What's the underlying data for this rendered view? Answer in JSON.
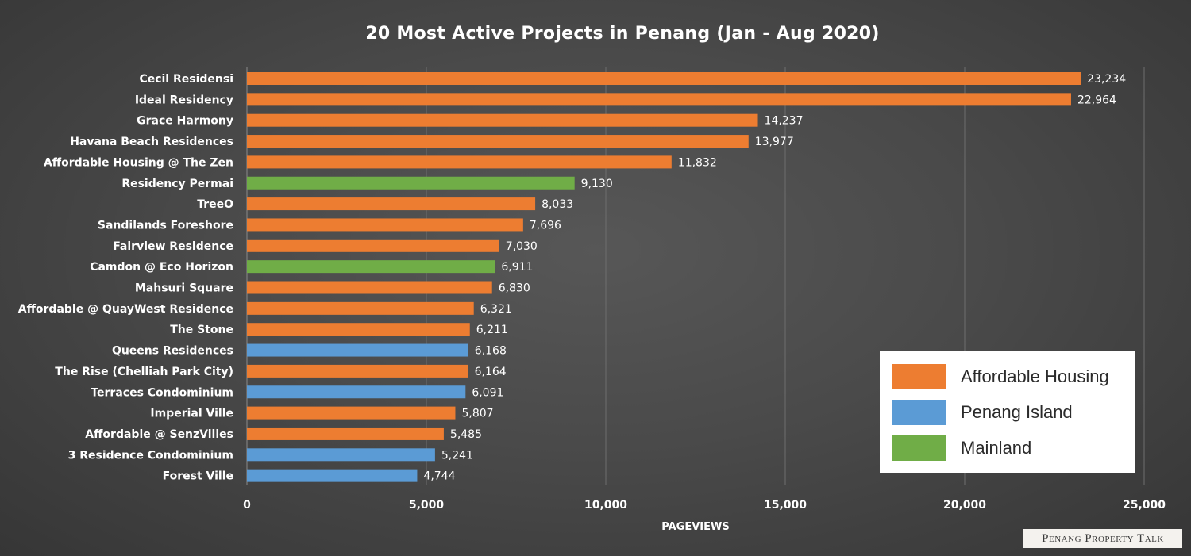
{
  "chart_data": {
    "type": "bar",
    "orientation": "horizontal",
    "title": "20 Most Active Projects in Penang (Jan - Aug 2020)",
    "xlabel": "PAGEVIEWS",
    "ylabel": "",
    "xlim": [
      0,
      25000
    ],
    "x_ticks": [
      {
        "value": 0,
        "label": "0"
      },
      {
        "value": 5000,
        "label": "5,000"
      },
      {
        "value": 10000,
        "label": "10,000"
      },
      {
        "value": 15000,
        "label": "15,000"
      },
      {
        "value": 20000,
        "label": "20,000"
      },
      {
        "value": 25000,
        "label": "25,000"
      }
    ],
    "grid": "vertical",
    "legend_placement": "bottom-right",
    "categories": [
      "Cecil Residensi",
      "Ideal Residency",
      "Grace Harmony",
      "Havana Beach Residences",
      "Affordable Housing @ The Zen",
      "Residency Permai",
      "TreeO",
      "Sandilands Foreshore",
      "Fairview Residence",
      "Camdon @ Eco Horizon",
      "Mahsuri Square",
      "Affordable @ QuayWest Residence",
      "The Stone",
      "Queens Residences",
      "The Rise (Chelliah Park City)",
      "Terraces Condominium",
      "Imperial Ville",
      "Affordable @ SenzVilles",
      "3 Residence Condominium",
      "Forest Ville"
    ],
    "values": [
      23234,
      22964,
      14237,
      13977,
      11832,
      9130,
      8033,
      7696,
      7030,
      6911,
      6830,
      6321,
      6211,
      6168,
      6164,
      6091,
      5807,
      5485,
      5241,
      4744
    ],
    "value_labels": [
      "23,234",
      "22,964",
      "14,237",
      "13,977",
      "11,832",
      "9,130",
      "8,033",
      "7,696",
      "7,030",
      "6,911",
      "6,830",
      "6,321",
      "6,211",
      "6,168",
      "6,164",
      "6,091",
      "5,807",
      "5,485",
      "5,241",
      "4,744"
    ],
    "groups": [
      "Affordable Housing",
      "Affordable Housing",
      "Affordable Housing",
      "Affordable Housing",
      "Affordable Housing",
      "Mainland",
      "Affordable Housing",
      "Affordable Housing",
      "Affordable Housing",
      "Mainland",
      "Affordable Housing",
      "Affordable Housing",
      "Affordable Housing",
      "Penang Island",
      "Affordable Housing",
      "Penang Island",
      "Affordable Housing",
      "Affordable Housing",
      "Penang Island",
      "Penang Island"
    ],
    "legend": [
      {
        "name": "Affordable Housing",
        "color": "#ED7D31"
      },
      {
        "name": "Penang Island",
        "color": "#5B9BD5"
      },
      {
        "name": "Mainland",
        "color": "#70AD47"
      }
    ]
  },
  "watermark": "Penang Property Talk"
}
